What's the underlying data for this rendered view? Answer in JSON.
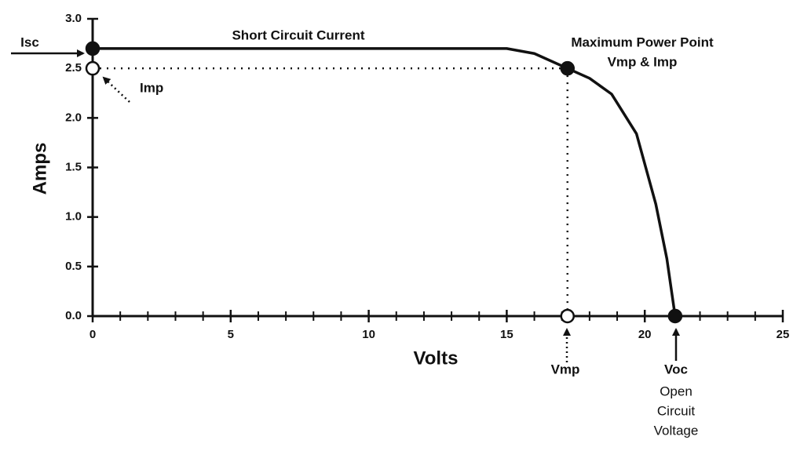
{
  "chart_data": {
    "type": "line",
    "xlabel": "Volts",
    "ylabel": "Amps",
    "xlim": [
      0,
      25
    ],
    "ylim": [
      0,
      3.0
    ],
    "xticks": [
      0,
      5,
      10,
      15,
      20,
      25
    ],
    "yticks": [
      {
        "value": 0,
        "label": "0.0"
      },
      0.5,
      {
        "value": 1,
        "label": "1.0"
      },
      1.5,
      {
        "value": 2,
        "label": "2.0"
      },
      2.5,
      {
        "value": 3,
        "label": "3.0"
      }
    ],
    "series": [
      {
        "color": "#111111",
        "x": [
          0,
          15,
          16,
          17.2,
          18,
          18.8,
          19.7,
          20.4,
          20.8,
          21.1
        ],
        "values": [
          2.7,
          2.7,
          2.65,
          2.5,
          2.4,
          2.24,
          1.84,
          1.13,
          0.58,
          0
        ]
      }
    ],
    "markers": [
      {
        "label": "Isc",
        "x": 0,
        "y": 2.7,
        "filled": true
      },
      {
        "label": "Imp",
        "x": 0,
        "y": 2.5,
        "filled": false
      },
      {
        "x": 17.2,
        "y": 2.5,
        "filled": true
      },
      {
        "label": "Vmp",
        "x": 17.2,
        "y": 0,
        "filled": false
      },
      {
        "label": "Voc",
        "x": 21.1,
        "y": 0,
        "filled": true
      }
    ],
    "annotations": {
      "isc": "Short Circuit Current",
      "mpp": "Maximum Power Point",
      "mpp_sub": "Vmp & Imp",
      "voc": [
        "Open",
        "Circuit",
        "Voltage"
      ]
    }
  }
}
